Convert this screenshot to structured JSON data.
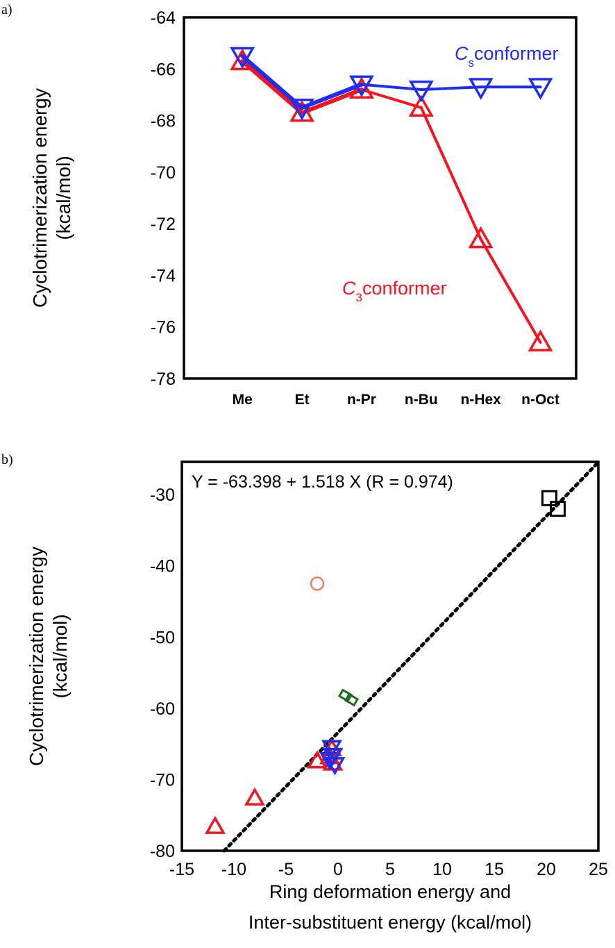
{
  "chart_data": [
    {
      "panel_label": "a)",
      "type": "line",
      "categories": [
        "Me",
        "Et",
        "n-Pr",
        "n-Bu",
        "n-Hex",
        "n-Oct"
      ],
      "ylabel_lines": [
        "Cyclotrimerization energy",
        "(kcal/mol)"
      ],
      "ylim": [
        -78,
        -64
      ],
      "yticks": [
        -64,
        -66,
        -68,
        -70,
        -72,
        -74,
        -76,
        -78
      ],
      "grid": false,
      "series": [
        {
          "name_main": "C",
          "name_sub": "s",
          "name_rest": "conformer",
          "marker": "triangle-down",
          "color": "#1f2ef0",
          "values": [
            -65.5,
            -67.5,
            -66.6,
            -66.8,
            -66.7,
            -66.7
          ]
        },
        {
          "name_main": "C",
          "name_sub": "3",
          "name_rest": "conformer",
          "marker": "triangle-up",
          "color": "#f5141e",
          "values": [
            -65.7,
            -67.7,
            -66.8,
            -67.5,
            -72.6,
            -76.6
          ]
        }
      ]
    },
    {
      "panel_label": "b)",
      "type": "scatter",
      "xlabel_lines": [
        "Ring deformation energy and",
        "Inter-substituent energy (kcal/mol)"
      ],
      "ylabel_lines": [
        "Cyclotrimerization energy",
        "(kcal/mol)"
      ],
      "xlim": [
        -15,
        25
      ],
      "ylim": [
        -80,
        -25.4
      ],
      "xticks": [
        -15,
        -10,
        -5,
        0,
        5,
        10,
        15,
        20,
        25
      ],
      "yticks": [
        -30,
        -40,
        -50,
        -60,
        -70,
        -80
      ],
      "grid": false,
      "annotation": "Y = -63.398 + 1.518 X (R = 0.974)",
      "fit": {
        "intercept": -63.398,
        "slope": 1.518,
        "style": "dotted",
        "color": "#000000"
      },
      "series": [
        {
          "marker": "triangle-up",
          "color": "#f5141e",
          "points": [
            [
              -11.8,
              -76.6
            ],
            [
              -8.0,
              -72.6
            ],
            [
              -2.0,
              -67.4
            ],
            [
              -0.5,
              -67.7
            ],
            [
              -0.8,
              -66.8
            ],
            [
              -0.6,
              -65.7
            ]
          ]
        },
        {
          "marker": "triangle-down",
          "color": "#1f2ef0",
          "points": [
            [
              -0.6,
              -65.5
            ],
            [
              -0.8,
              -67.2
            ],
            [
              -0.3,
              -67.9
            ],
            [
              -0.5,
              -66.6
            ]
          ]
        },
        {
          "marker": "circle",
          "color": "#f47a6e",
          "points": [
            [
              -2.0,
              -42.5
            ]
          ]
        },
        {
          "marker": "diamond",
          "color": "#1e6b1a",
          "points": [
            [
              0.7,
              -58.2
            ],
            [
              1.3,
              -58.8
            ]
          ]
        },
        {
          "marker": "square",
          "color": "#000000",
          "points": [
            [
              20.3,
              -30.5
            ],
            [
              21.1,
              -32.0
            ]
          ]
        }
      ]
    }
  ]
}
